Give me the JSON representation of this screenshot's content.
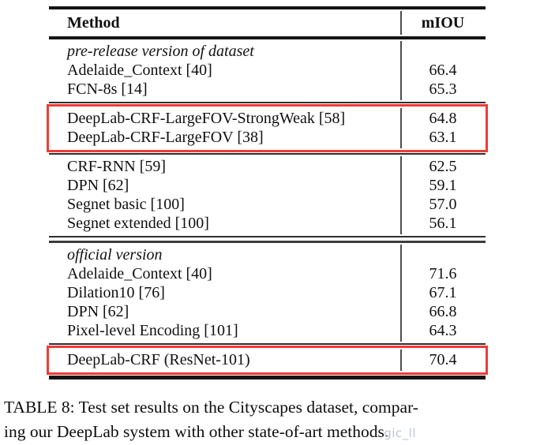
{
  "table": {
    "header": {
      "method": "Method",
      "metric": "mIOU"
    },
    "highlight_color": "#ef3b35",
    "groups": [
      {
        "section": "pre-release version of dataset",
        "highlighted": false,
        "rows": [
          {
            "method": "Adelaide_Context [40]",
            "miou": "66.4"
          },
          {
            "method": "FCN-8s [14]",
            "miou": "65.3"
          }
        ]
      },
      {
        "section": null,
        "highlighted": true,
        "rows": [
          {
            "method": "DeepLab-CRF-LargeFOV-StrongWeak [58]",
            "miou": "64.8"
          },
          {
            "method": "DeepLab-CRF-LargeFOV [38]",
            "miou": "63.1"
          }
        ]
      },
      {
        "section": null,
        "highlighted": false,
        "rows": [
          {
            "method": "CRF-RNN [59]",
            "miou": "62.5"
          },
          {
            "method": "DPN [62]",
            "miou": "59.1"
          },
          {
            "method": "Segnet basic [100]",
            "miou": "57.0"
          },
          {
            "method": "Segnet extended [100]",
            "miou": "56.1"
          }
        ]
      },
      {
        "section": "official version",
        "highlighted": false,
        "rows": [
          {
            "method": "Adelaide_Context [40]",
            "miou": "71.6"
          },
          {
            "method": "Dilation10 [76]",
            "miou": "67.1"
          },
          {
            "method": "DPN [62]",
            "miou": "66.8"
          },
          {
            "method": "Pixel-level Encoding [101]",
            "miou": "64.3"
          }
        ]
      },
      {
        "section": null,
        "highlighted": true,
        "rows": [
          {
            "method": "DeepLab-CRF (ResNet-101)",
            "miou": "70.4"
          }
        ]
      }
    ],
    "separators_after_group": [
      "single",
      "single",
      "double",
      "single"
    ]
  },
  "caption": {
    "lines": [
      "TABLE 8: Test set results on the Cityscapes dataset, compar-",
      "ing our DeepLab system with other state-of-art methods."
    ]
  },
  "watermark": {
    "text": "gic_ll",
    "color": "#bcc6d2"
  }
}
